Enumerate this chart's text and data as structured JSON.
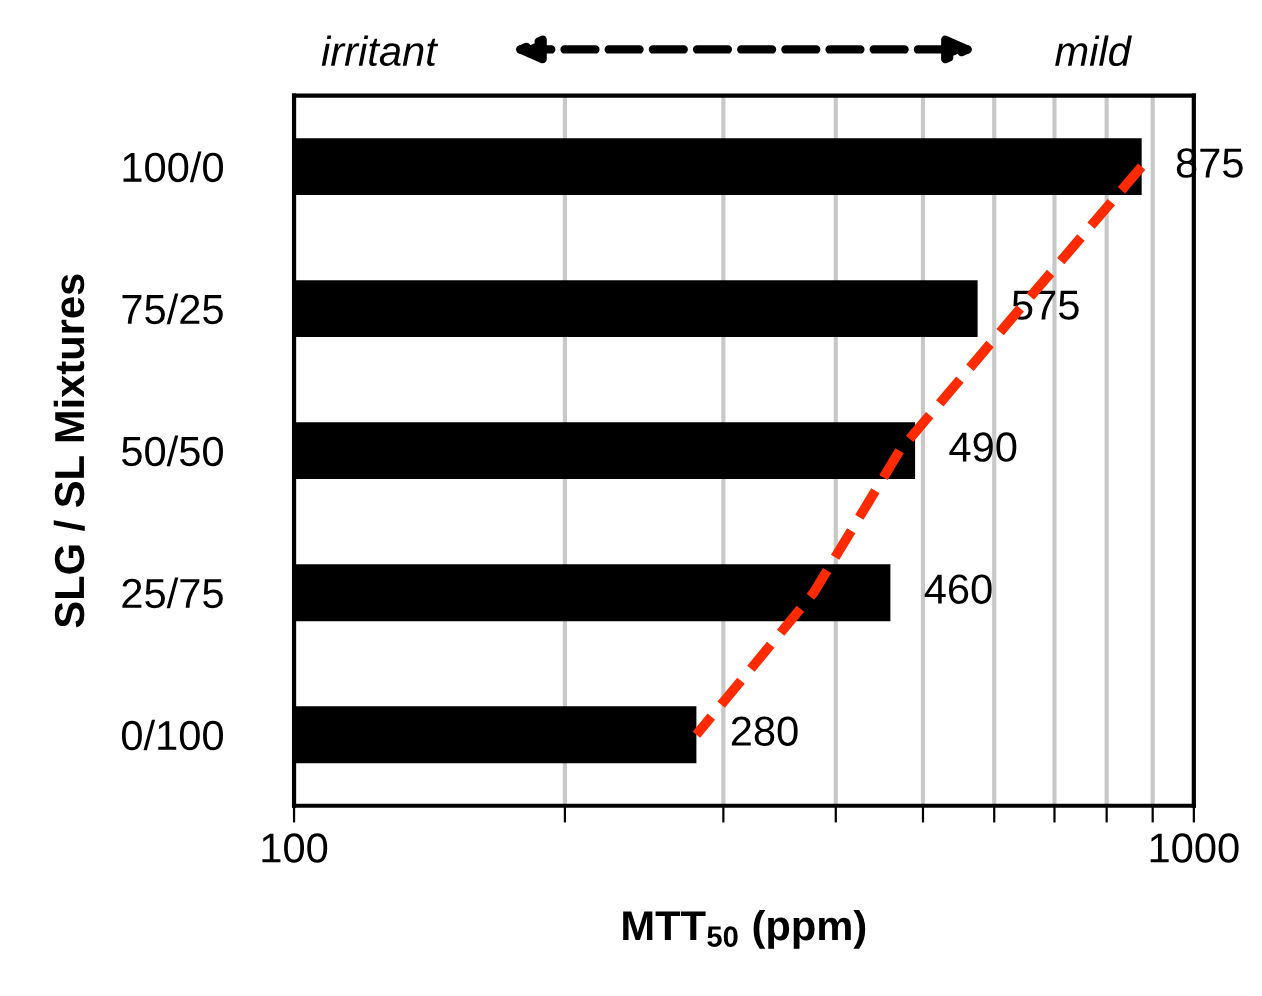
{
  "chart_data": {
    "type": "bar",
    "orientation": "horizontal",
    "log": "x",
    "categories": [
      "100/0",
      "75/25",
      "50/50",
      "25/75",
      "0/100"
    ],
    "series": [
      {
        "color": "#000000",
        "values": [
          875,
          575,
          490,
          460,
          280
        ],
        "value_labels": [
          "875",
          "575",
          "490",
          "460",
          "280"
        ]
      },
      {
        "type": "line",
        "color": "#ff2a00",
        "line_style": "dashed",
        "values": [
          875,
          641,
          471,
          378,
          280
        ]
      }
    ],
    "xlabel": "MTT$_{50}$ (ppm)",
    "ylabel": "SLG / SL Mixtures",
    "xlim": [
      100,
      1000
    ],
    "xticks": [
      100,
      {
        "value": 200,
        "label": null
      },
      {
        "value": 300,
        "label": null
      },
      {
        "value": 400,
        "label": null
      },
      {
        "value": 500,
        "label": null
      },
      {
        "value": 600,
        "label": null
      },
      {
        "value": 700,
        "label": null
      },
      {
        "value": 800,
        "label": null
      },
      {
        "value": 900,
        "label": null
      },
      1000
    ],
    "grid": "x",
    "annotations": [
      "irritant",
      "mild"
    ]
  }
}
